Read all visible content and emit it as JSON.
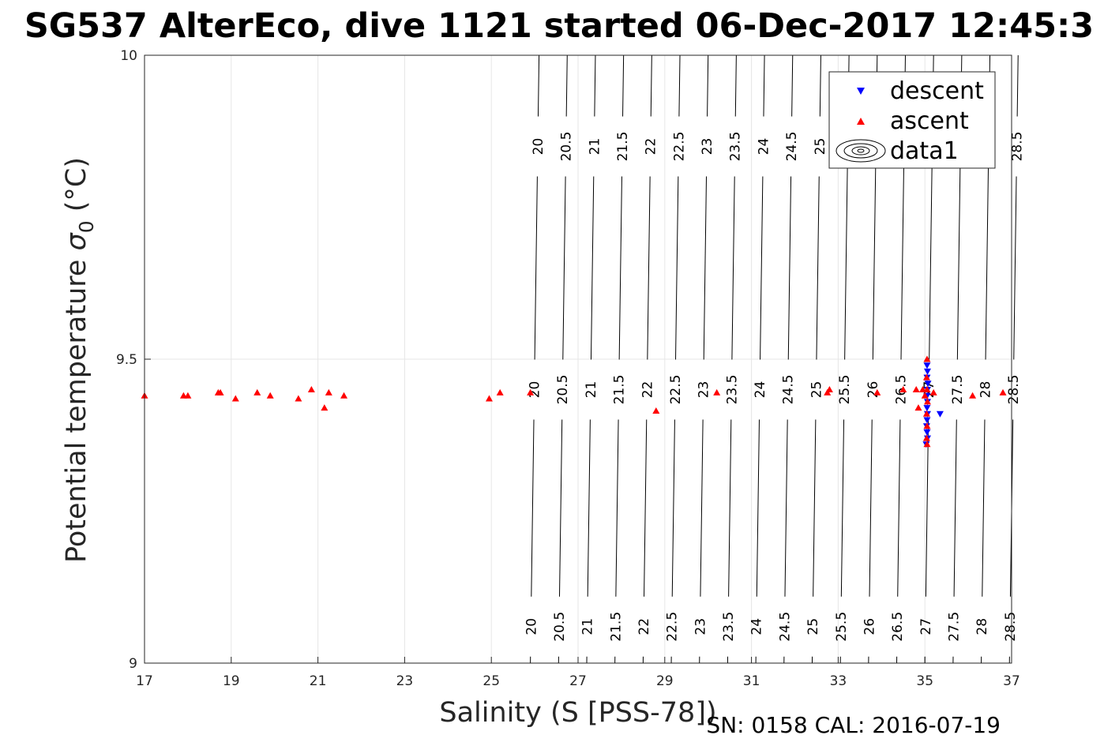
{
  "chart_data": {
    "type": "scatter",
    "title": "SG537 AlterEco, dive 1121 started 06-Dec-2017 12:45:3",
    "xlabel": "Salinity (S [PSS-78])",
    "ylabel_main": "Potential temperature ",
    "ylabel_sigma": "σ",
    "ylabel_sub": "0",
    "ylabel_unit": " (°C)",
    "xlim": [
      17,
      37
    ],
    "ylim": [
      9,
      10
    ],
    "xticks": [
      "17",
      "19",
      "21",
      "23",
      "25",
      "27",
      "29",
      "31",
      "33",
      "35",
      "37"
    ],
    "yticks": [
      "9",
      "9.5",
      "10"
    ],
    "grid": true,
    "legend": {
      "position": "top-right",
      "entries": [
        {
          "label": "descent",
          "marker": "triangle-down",
          "color": "#0000ff"
        },
        {
          "label": "ascent",
          "marker": "triangle-up",
          "color": "#ff0000"
        },
        {
          "label": "data1",
          "marker": "contour",
          "color": "#000000"
        }
      ]
    },
    "contours": {
      "levels": [
        "20",
        "20.5",
        "21",
        "21.5",
        "22",
        "22.5",
        "23",
        "23.5",
        "24",
        "24.5",
        "25",
        "25.5",
        "26",
        "26.5",
        "27",
        "27.5",
        "28",
        "28.5"
      ],
      "salinity_at_t9": [
        25.9,
        26.55,
        27.2,
        27.85,
        28.5,
        29.15,
        29.8,
        30.45,
        31.1,
        31.75,
        32.4,
        33.05,
        33.7,
        34.35,
        35.0,
        35.65,
        36.3,
        36.95
      ],
      "salinity_at_t10": [
        26.1,
        26.75,
        27.4,
        28.05,
        28.7,
        29.35,
        30.0,
        30.65,
        31.3,
        31.95,
        32.6,
        33.25,
        33.9,
        34.55,
        35.2,
        35.85,
        36.5,
        37.15
      ],
      "label_rows_t": [
        9.85,
        9.45,
        9.06
      ],
      "top_row_levels": [
        "20",
        "20.5",
        "21",
        "21.5",
        "22",
        "22.5",
        "23",
        "23.5",
        "24",
        "24.5",
        "25",
        "28.5"
      ]
    },
    "series": [
      {
        "name": "descent",
        "marker": "triangle-down",
        "color": "#0000ff",
        "points": [
          [
            35.05,
            9.49
          ],
          [
            35.06,
            9.48
          ],
          [
            35.05,
            9.47
          ],
          [
            35.07,
            9.46
          ],
          [
            35.06,
            9.45
          ],
          [
            35.05,
            9.44
          ],
          [
            35.06,
            9.43
          ],
          [
            35.05,
            9.42
          ],
          [
            35.06,
            9.41
          ],
          [
            35.05,
            9.4
          ],
          [
            35.04,
            9.39
          ],
          [
            35.05,
            9.38
          ],
          [
            35.06,
            9.37
          ],
          [
            35.03,
            9.36
          ],
          [
            35.35,
            9.41
          ]
        ]
      },
      {
        "name": "ascent",
        "marker": "triangle-up",
        "color": "#ff0000",
        "points": [
          [
            17.0,
            9.44
          ],
          [
            17.9,
            9.44
          ],
          [
            18.0,
            9.44
          ],
          [
            18.7,
            9.445
          ],
          [
            18.75,
            9.445
          ],
          [
            19.1,
            9.435
          ],
          [
            19.6,
            9.445
          ],
          [
            19.9,
            9.44
          ],
          [
            20.55,
            9.435
          ],
          [
            20.85,
            9.45
          ],
          [
            21.15,
            9.42
          ],
          [
            21.25,
            9.445
          ],
          [
            21.6,
            9.44
          ],
          [
            24.95,
            9.435
          ],
          [
            25.2,
            9.445
          ],
          [
            25.9,
            9.445
          ],
          [
            28.8,
            9.415
          ],
          [
            30.2,
            9.445
          ],
          [
            32.75,
            9.445
          ],
          [
            32.8,
            9.45
          ],
          [
            33.9,
            9.445
          ],
          [
            34.5,
            9.45
          ],
          [
            34.8,
            9.45
          ],
          [
            34.85,
            9.42
          ],
          [
            34.95,
            9.45
          ],
          [
            35.0,
            9.44
          ],
          [
            35.05,
            9.5
          ],
          [
            35.04,
            9.47
          ],
          [
            35.05,
            9.45
          ],
          [
            35.06,
            9.43
          ],
          [
            35.04,
            9.41
          ],
          [
            35.05,
            9.39
          ],
          [
            35.04,
            9.37
          ],
          [
            35.05,
            9.36
          ],
          [
            35.2,
            9.445
          ],
          [
            36.1,
            9.44
          ],
          [
            36.8,
            9.445
          ]
        ]
      }
    ]
  },
  "footer": {
    "sn_cal": "SN: 0158  CAL: 2016-07-19"
  }
}
